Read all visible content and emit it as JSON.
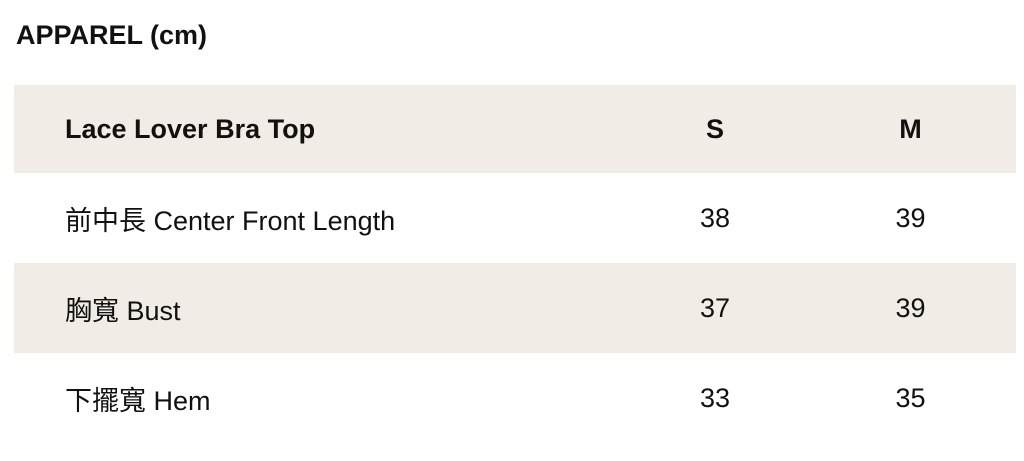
{
  "title": "APPAREL (cm)",
  "table": {
    "product": "Lace Lover Bra Top",
    "sizes": [
      "S",
      "M"
    ],
    "rows": [
      {
        "label": "前中長 Center Front Length",
        "values": [
          "38",
          "39"
        ]
      },
      {
        "label": "胸寬 Bust",
        "values": [
          "37",
          "39"
        ]
      },
      {
        "label": "下擺寬 Hem",
        "values": [
          "33",
          "35"
        ]
      }
    ]
  },
  "colors": {
    "shade": "#f2ece6"
  }
}
